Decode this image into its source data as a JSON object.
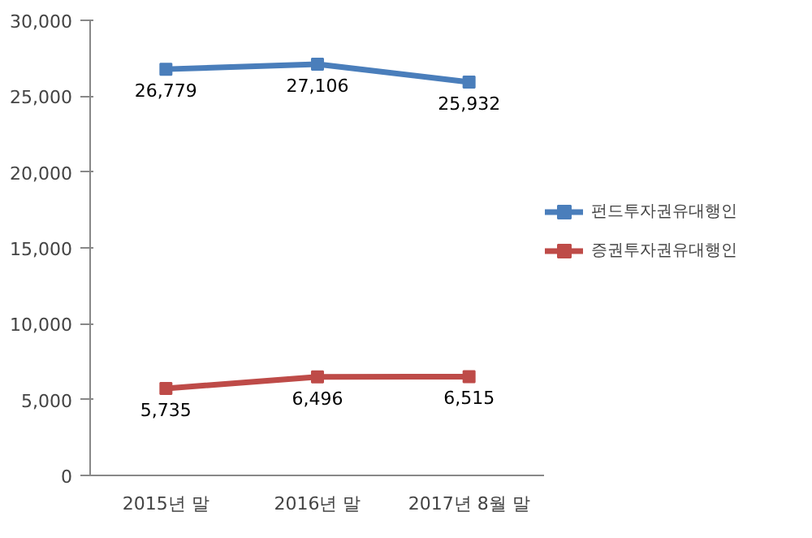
{
  "chart_data": {
    "type": "line",
    "categories": [
      "2015년 말",
      "2016년 말",
      "2017년 8월 말"
    ],
    "series": [
      {
        "name": "펀드투자권유대행인",
        "color": "#4a7ebb",
        "values": [
          26779,
          27106,
          25932
        ],
        "value_labels": [
          "26,779",
          "27,106",
          "25,932"
        ]
      },
      {
        "name": "증권투자권유대행인",
        "color": "#be4b48",
        "values": [
          5735,
          6496,
          6515
        ],
        "value_labels": [
          "5,735",
          "6,496",
          "6,515"
        ]
      }
    ],
    "ylim": [
      0,
      30000
    ],
    "yticks": [
      {
        "value": 0,
        "label": "0"
      },
      {
        "value": 5000,
        "label": "5,000"
      },
      {
        "value": 10000,
        "label": "10,000"
      },
      {
        "value": 15000,
        "label": "15,000"
      },
      {
        "value": 20000,
        "label": "20,000"
      },
      {
        "value": 25000,
        "label": "25,000"
      },
      {
        "value": 30000,
        "label": "30,000"
      }
    ],
    "data_labels": true,
    "legend": "right",
    "marker": "square",
    "line_style": "solid",
    "grid": false
  }
}
